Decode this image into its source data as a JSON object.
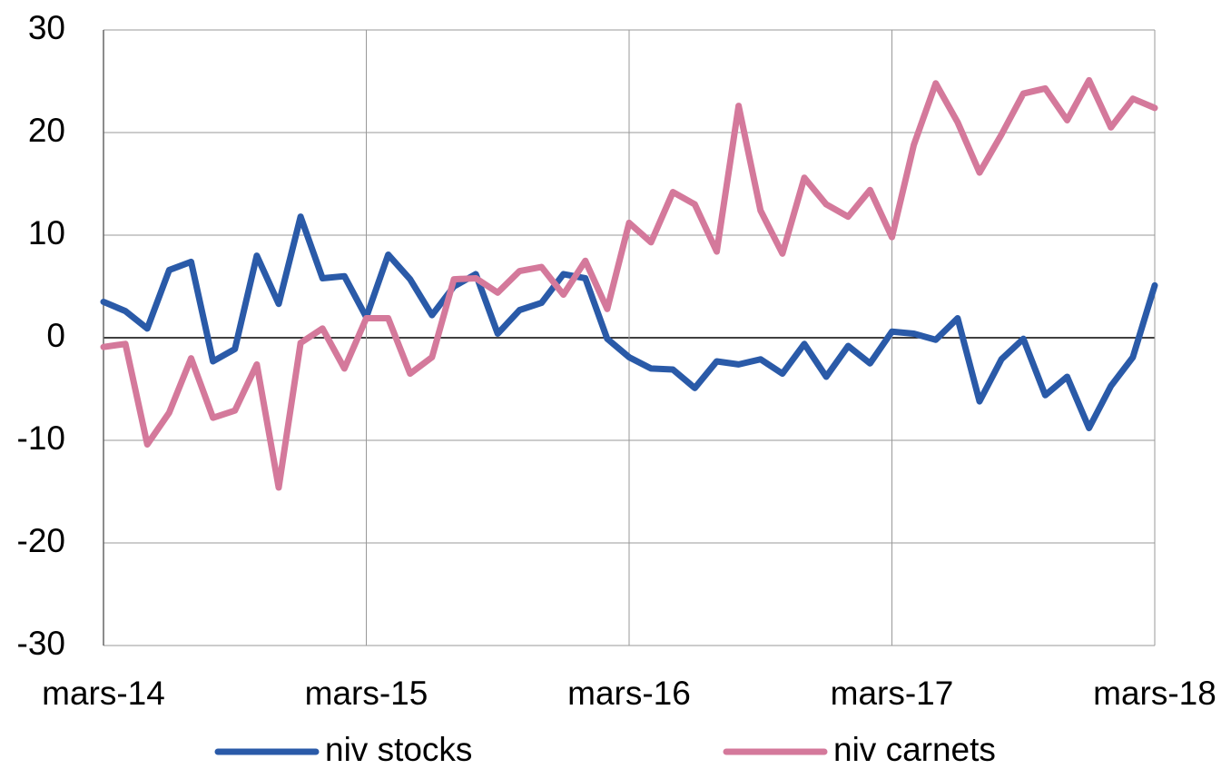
{
  "chart_data": {
    "type": "line",
    "categories": [
      "mars-14",
      null,
      null,
      null,
      null,
      null,
      null,
      null,
      null,
      null,
      null,
      null,
      "mars-15",
      null,
      null,
      null,
      null,
      null,
      null,
      null,
      null,
      null,
      null,
      null,
      "mars-16",
      null,
      null,
      null,
      null,
      null,
      null,
      null,
      null,
      null,
      null,
      null,
      "mars-17",
      null,
      null,
      null,
      null,
      null,
      null,
      null,
      null,
      null,
      null,
      null,
      "mars-18"
    ],
    "series": [
      {
        "name": "niv stocks",
        "color": "#2a5aa8",
        "values": [
          3.5,
          2.6,
          0.9,
          6.6,
          7.4,
          -2.3,
          -1.1,
          8.0,
          3.3,
          11.8,
          5.8,
          6.0,
          2.0,
          8.1,
          5.7,
          2.2,
          5.0,
          6.2,
          0.4,
          2.7,
          3.4,
          6.2,
          5.8,
          -0.1,
          -1.9,
          -3.0,
          -3.1,
          -4.9,
          -2.3,
          -2.6,
          -2.1,
          -3.5,
          -0.6,
          -3.8,
          -0.8,
          -2.5,
          0.6,
          0.4,
          -0.2,
          1.9,
          -6.2,
          -2.1,
          -0.1,
          -5.6,
          -3.8,
          -8.8,
          -4.7,
          -1.9,
          5.1
        ]
      },
      {
        "name": "niv carnets",
        "color": "#d4799b",
        "values": [
          -0.9,
          -0.6,
          -10.4,
          -7.3,
          -2.0,
          -7.8,
          -7.1,
          -2.6,
          -14.6,
          -0.5,
          0.9,
          -3.0,
          1.9,
          1.9,
          -3.5,
          -1.9,
          5.7,
          5.8,
          4.4,
          6.5,
          6.9,
          4.2,
          7.5,
          2.8,
          11.2,
          9.3,
          14.2,
          13.0,
          8.4,
          22.6,
          12.4,
          8.2,
          15.6,
          13.0,
          11.8,
          14.4,
          9.8,
          18.8,
          24.8,
          21.0,
          16.1,
          19.8,
          23.8,
          24.3,
          21.2,
          25.1,
          20.5,
          23.3,
          22.4
        ]
      }
    ],
    "ylim": [
      -30,
      30
    ],
    "yticks": [
      -30,
      -20,
      -10,
      0,
      10,
      20,
      30
    ],
    "grid": true,
    "legend": "bottom"
  }
}
